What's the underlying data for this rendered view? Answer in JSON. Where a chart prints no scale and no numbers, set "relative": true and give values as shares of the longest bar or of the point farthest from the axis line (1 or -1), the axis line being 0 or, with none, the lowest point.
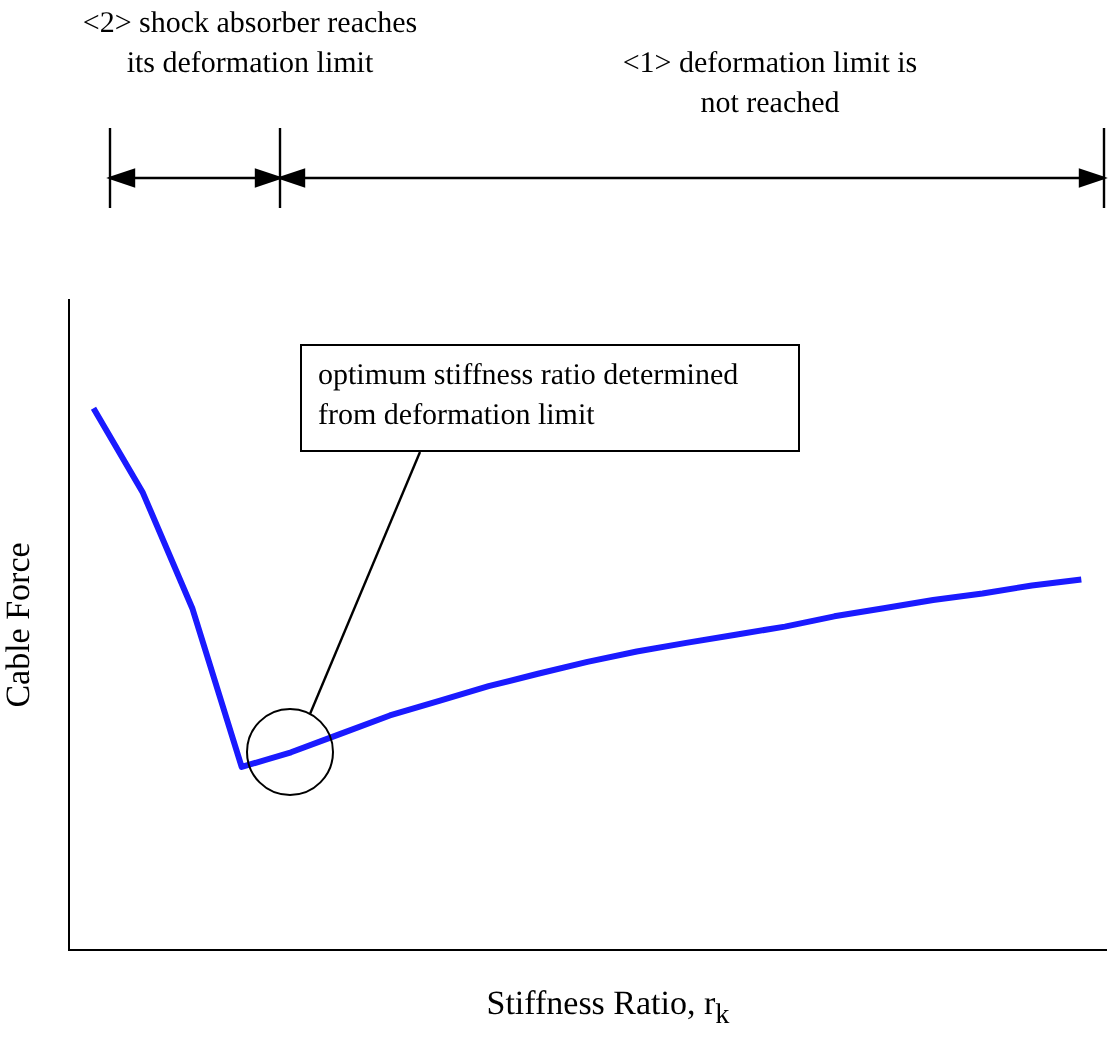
{
  "chart_data": {
    "type": "line",
    "relative": true,
    "xlabel": "Stiffness Ratio, r$_{k}$",
    "ylabel": "Cable Force",
    "categories": [
      null,
      null,
      null,
      null,
      null,
      null,
      null,
      null,
      null,
      null,
      null,
      null,
      null,
      null,
      null,
      null,
      null,
      null,
      null,
      null,
      null
    ],
    "series": [
      {
        "color": "#1a1aff",
        "values": [
          1,
          0.844,
          0.631,
          0.338,
          0.365,
          0.399,
          0.433,
          0.46,
          0.487,
          0.51,
          0.532,
          0.551,
          0.567,
          0.582,
          0.597,
          0.616,
          0.631,
          0.646,
          0.658,
          0.673,
          0.684
        ]
      }
    ],
    "annotations": [
      "<2> shock absorber reaches its deformation limit",
      "<1> deformation limit is not reached",
      "optimum stiffness ratio determined from deformation limit"
    ],
    "grid": false,
    "legend": false,
    "marker": "none",
    "line_style": "solid",
    "tick_labels": false
  }
}
